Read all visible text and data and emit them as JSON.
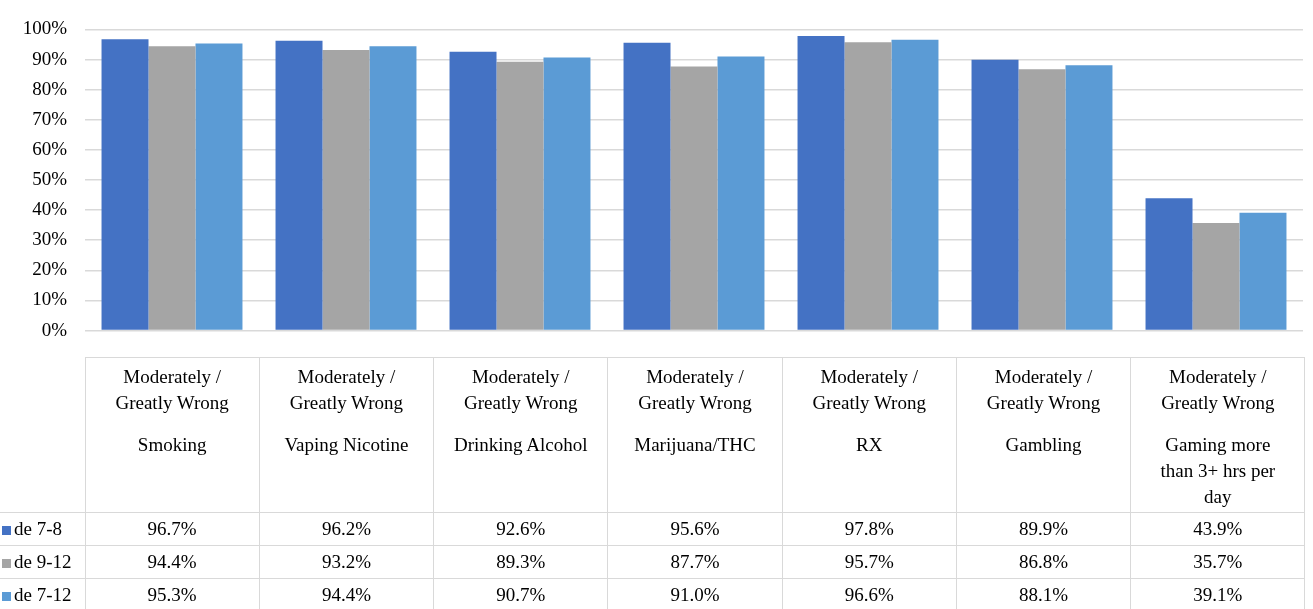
{
  "chart_data": {
    "type": "bar",
    "categories": [
      "Moderately / Greatly Wrong\nSmoking",
      "Moderately / Greatly Wrong\nVaping Nicotine",
      "Moderately / Greatly Wrong\nDrinking Alcohol",
      "Moderately / Greatly Wrong\nMarijuana/THC",
      "Moderately / Greatly Wrong\nRX",
      "Moderately / Greatly Wrong\nGambling",
      "Moderately / Greatly Wrong\nGaming more than 3+ hrs per day"
    ],
    "series": [
      {
        "name": "de  7-8",
        "color": "#4472c4",
        "values": [
          96.7,
          96.2,
          92.6,
          95.6,
          97.8,
          89.9,
          43.9
        ],
        "value_labels": [
          "96.7%",
          "96.2%",
          "92.6%",
          "95.6%",
          "97.8%",
          "89.9%",
          "43.9%"
        ]
      },
      {
        "name": "de  9-12",
        "color": "#a5a5a5",
        "values": [
          94.4,
          93.2,
          89.3,
          87.7,
          95.7,
          86.8,
          35.7
        ],
        "value_labels": [
          "94.4%",
          "93.2%",
          "89.3%",
          "87.7%",
          "95.7%",
          "86.8%",
          "35.7%"
        ]
      },
      {
        "name": "de  7-12",
        "color": "#5b9bd5",
        "values": [
          95.3,
          94.4,
          90.7,
          91.0,
          96.6,
          88.1,
          39.1
        ],
        "value_labels": [
          "95.3%",
          "94.4%",
          "90.7%",
          "91.0%",
          "96.6%",
          "88.1%",
          "39.1%"
        ]
      }
    ],
    "ylim": [
      0,
      100
    ],
    "yticks": [
      {
        "value": 0,
        "label": "0%"
      },
      {
        "value": 10,
        "label": "10%"
      },
      {
        "value": 20,
        "label": "20%"
      },
      {
        "value": 30,
        "label": "30%"
      },
      {
        "value": 40,
        "label": "40%"
      },
      {
        "value": 50,
        "label": "50%"
      },
      {
        "value": 60,
        "label": "60%"
      },
      {
        "value": 70,
        "label": "70%"
      },
      {
        "value": 80,
        "label": "80%"
      },
      {
        "value": 90,
        "label": "90%"
      },
      {
        "value": 100,
        "label": "100%"
      }
    ],
    "grid": "y",
    "legend": "bottom left"
  }
}
